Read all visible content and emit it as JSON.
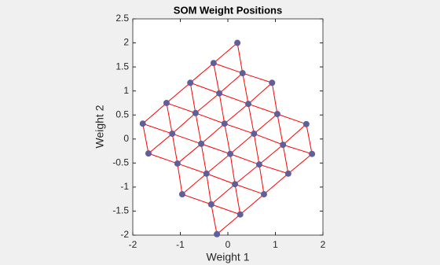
{
  "chart_data": {
    "type": "scatter",
    "title": "SOM Weight Positions",
    "x_label": "Weight 1",
    "y_label": "Weight 2",
    "xlim": [
      -2,
      2
    ],
    "xticks": [
      -2,
      -1,
      0,
      1,
      2
    ],
    "ylim": [
      -2,
      2.5
    ],
    "yticks": [
      -2,
      -1.5,
      -1,
      -0.5,
      0,
      0.5,
      1,
      1.5,
      2,
      2.5
    ],
    "series": [
      {
        "color": "#5f5f9a",
        "edge_color": "#ff0000",
        "x": [
          0.2,
          -0.3,
          -0.79,
          -1.29,
          -1.79,
          0.31,
          -0.18,
          -0.68,
          -1.17,
          -1.67,
          0.93,
          0.43,
          -0.07,
          -0.56,
          -1.06,
          1.04,
          0.55,
          0.05,
          -0.45,
          -0.96,
          1.65,
          1.16,
          0.66,
          0.15,
          -0.35,
          1.77,
          1.27,
          0.76,
          0.26,
          -0.23
        ],
        "values": [
          2.0,
          1.58,
          1.17,
          0.75,
          0.32,
          1.37,
          0.95,
          0.54,
          0.11,
          -0.3,
          1.17,
          0.73,
          0.32,
          -0.1,
          -0.51,
          0.52,
          0.11,
          -0.31,
          -0.72,
          -1.15,
          0.31,
          -0.12,
          -0.53,
          -0.94,
          -1.36,
          -0.31,
          -0.72,
          -1.15,
          -1.57,
          -1.98
        ]
      }
    ]
  }
}
